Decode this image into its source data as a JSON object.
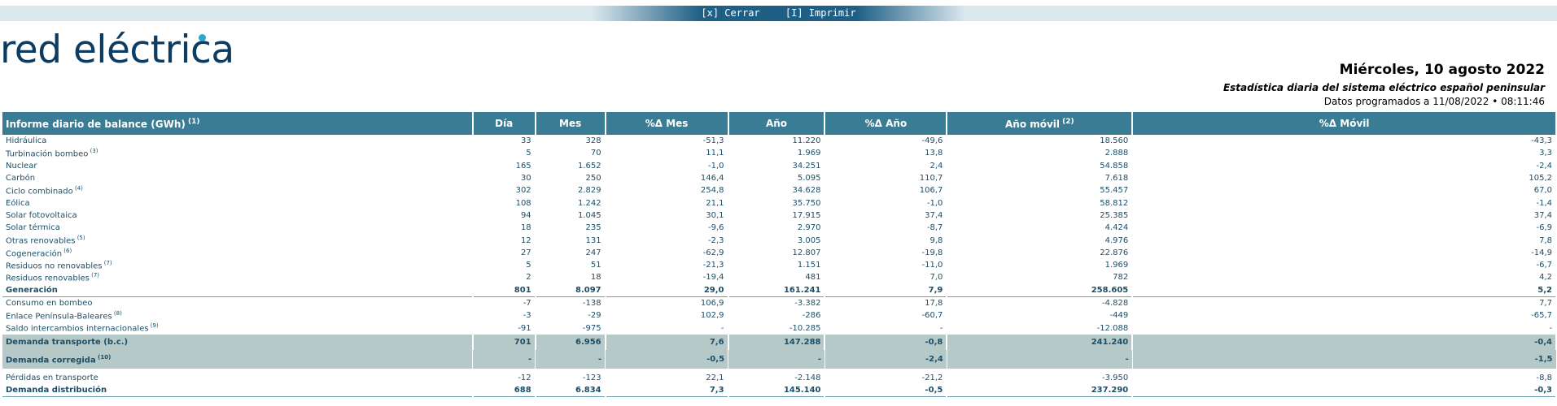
{
  "toolbar": {
    "close_label": "[x] Cerrar",
    "print_label": "[I] Imprimir"
  },
  "logo": {
    "text": "red eléctrica"
  },
  "header": {
    "date": "Miércoles, 10 agosto 2022",
    "subtitle": "Estadística diaria del sistema eléctrico español peninsular",
    "programmed": "Datos programados a 11/08/2022 • 08:11:46"
  },
  "table": {
    "columns": [
      "Informe diario de balance (GWh)",
      "Día",
      "Mes",
      "%Δ Mes",
      "Año",
      "%Δ Año",
      "Año móvil",
      "%Δ Móvil"
    ],
    "column_notes": {
      "0": "(1)",
      "6": "(2)"
    },
    "rows": [
      {
        "label": "Hidráulica",
        "note": "",
        "style": "",
        "values": [
          "33",
          "328",
          "-51,3",
          "11.220",
          "-49,6",
          "18.560",
          "-43,3"
        ]
      },
      {
        "label": "Turbinación bombeo",
        "note": "(3)",
        "style": "",
        "values": [
          "5",
          "70",
          "11,1",
          "1.969",
          "13,8",
          "2.888",
          "3,3"
        ]
      },
      {
        "label": "Nuclear",
        "note": "",
        "style": "",
        "values": [
          "165",
          "1.652",
          "-1,0",
          "34.251",
          "2,4",
          "54.858",
          "-2,4"
        ]
      },
      {
        "label": "Carbón",
        "note": "",
        "style": "",
        "values": [
          "30",
          "250",
          "146,4",
          "5.095",
          "110,7",
          "7.618",
          "105,2"
        ]
      },
      {
        "label": "Ciclo combinado",
        "note": "(4)",
        "style": "",
        "values": [
          "302",
          "2.829",
          "254,8",
          "34.628",
          "106,7",
          "55.457",
          "67,0"
        ]
      },
      {
        "label": "Eólica",
        "note": "",
        "style": "",
        "values": [
          "108",
          "1.242",
          "21,1",
          "35.750",
          "-1,0",
          "58.812",
          "-1,4"
        ]
      },
      {
        "label": "Solar fotovoltaica",
        "note": "",
        "style": "",
        "values": [
          "94",
          "1.045",
          "30,1",
          "17.915",
          "37,4",
          "25.385",
          "37,4"
        ]
      },
      {
        "label": "Solar térmica",
        "note": "",
        "style": "",
        "values": [
          "18",
          "235",
          "-9,6",
          "2.970",
          "-8,7",
          "4.424",
          "-6,9"
        ]
      },
      {
        "label": "Otras renovables",
        "note": "(5)",
        "style": "",
        "values": [
          "12",
          "131",
          "-2,3",
          "3.005",
          "9,8",
          "4.976",
          "7,8"
        ]
      },
      {
        "label": "Cogeneración",
        "note": "(6)",
        "style": "",
        "values": [
          "27",
          "247",
          "-62,9",
          "12.807",
          "-19,8",
          "22.876",
          "-14,9"
        ]
      },
      {
        "label": "Residuos no renovables",
        "note": "(7)",
        "style": "",
        "values": [
          "5",
          "51",
          "-21,3",
          "1.151",
          "-11,0",
          "1.969",
          "-6,7"
        ]
      },
      {
        "label": "Residuos renovables",
        "note": "(7)",
        "style": "",
        "values": [
          "2",
          "18",
          "-19,4",
          "481",
          "7,0",
          "782",
          "4,2"
        ]
      },
      {
        "label": "Generación",
        "note": "",
        "style": "bold gen",
        "values": [
          "801",
          "8.097",
          "29,0",
          "161.241",
          "7,9",
          "258.605",
          "5,2"
        ]
      },
      {
        "label": "Consumo en bombeo",
        "note": "",
        "style": "",
        "values": [
          "-7",
          "-138",
          "106,9",
          "-3.382",
          "17,8",
          "-4.828",
          "7,7"
        ]
      },
      {
        "label": "Enlace Península-Baleares",
        "note": "(8)",
        "style": "",
        "values": [
          "-3",
          "-29",
          "102,9",
          "-286",
          "-60,7",
          "-449",
          "-65,7"
        ]
      },
      {
        "label": "Saldo intercambios internacionales",
        "note": "(9)",
        "style": "",
        "values": [
          "-91",
          "-975",
          "-",
          "-10.285",
          "-",
          "-12.088",
          "-"
        ]
      },
      {
        "label": "Demanda transporte (b.c.)",
        "note": "",
        "style": "shaded",
        "values": [
          "701",
          "6.956",
          "7,6",
          "147.288",
          "-0,8",
          "241.240",
          "-0,4"
        ]
      },
      {
        "label": "Demanda corregida",
        "note": "(10)",
        "style": "shaded2",
        "values": [
          "-",
          "-",
          "-0,5",
          "-",
          "-2,4",
          "-",
          "-1,5"
        ]
      },
      {
        "label": "",
        "note": "",
        "style": "gap",
        "values": [
          "",
          "",
          "",
          "",
          "",
          "",
          ""
        ]
      },
      {
        "label": "Pérdidas en transporte",
        "note": "",
        "style": "",
        "values": [
          "-12",
          "-123",
          "22,1",
          "-2.148",
          "-21,2",
          "-3.950",
          "-8,8"
        ]
      },
      {
        "label": "Demanda distribución",
        "note": "",
        "style": "bold last",
        "values": [
          "688",
          "6.834",
          "7,3",
          "145.140",
          "-0,5",
          "237.290",
          "-0,3"
        ]
      }
    ]
  },
  "colors": {
    "header_bg": "#3a7c94",
    "shaded_bg": "#b4c9c8",
    "text": "#1d4e66"
  }
}
